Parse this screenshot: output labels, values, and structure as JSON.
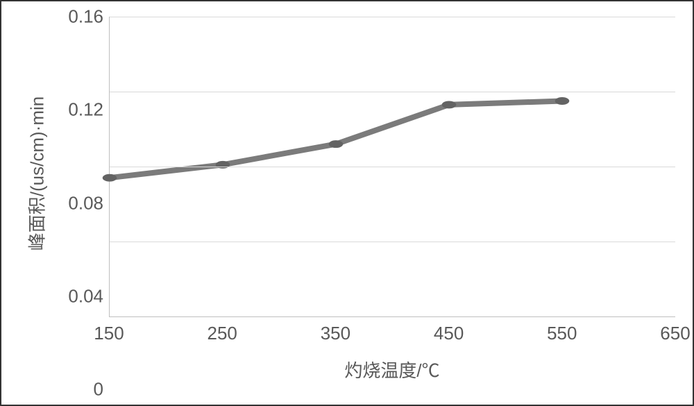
{
  "chart": {
    "type": "line",
    "xlabel": "灼烧温度/℃",
    "ylabel": "峰面积/(us/cm)·min",
    "label_fontsize": 26,
    "label_color": "#595959",
    "background_color": "#ffffff",
    "grid_color": "#d9d9d9",
    "axis_color": "#bfbfbf",
    "xlim": [
      150,
      650
    ],
    "ylim": [
      0,
      0.16
    ],
    "xtick_step": 100,
    "ytick_step": 0.04,
    "xticks": [
      150,
      250,
      350,
      450,
      550,
      650
    ],
    "yticks": [
      0,
      0.04,
      0.08,
      0.12,
      0.16
    ],
    "series": {
      "x": [
        150,
        250,
        350,
        450,
        550
      ],
      "y": [
        0.074,
        0.081,
        0.092,
        0.113,
        0.115
      ],
      "line_color": "#7b7b7b",
      "line_width": 4,
      "marker": "circle",
      "marker_size": 9,
      "marker_color": "#636363"
    }
  }
}
